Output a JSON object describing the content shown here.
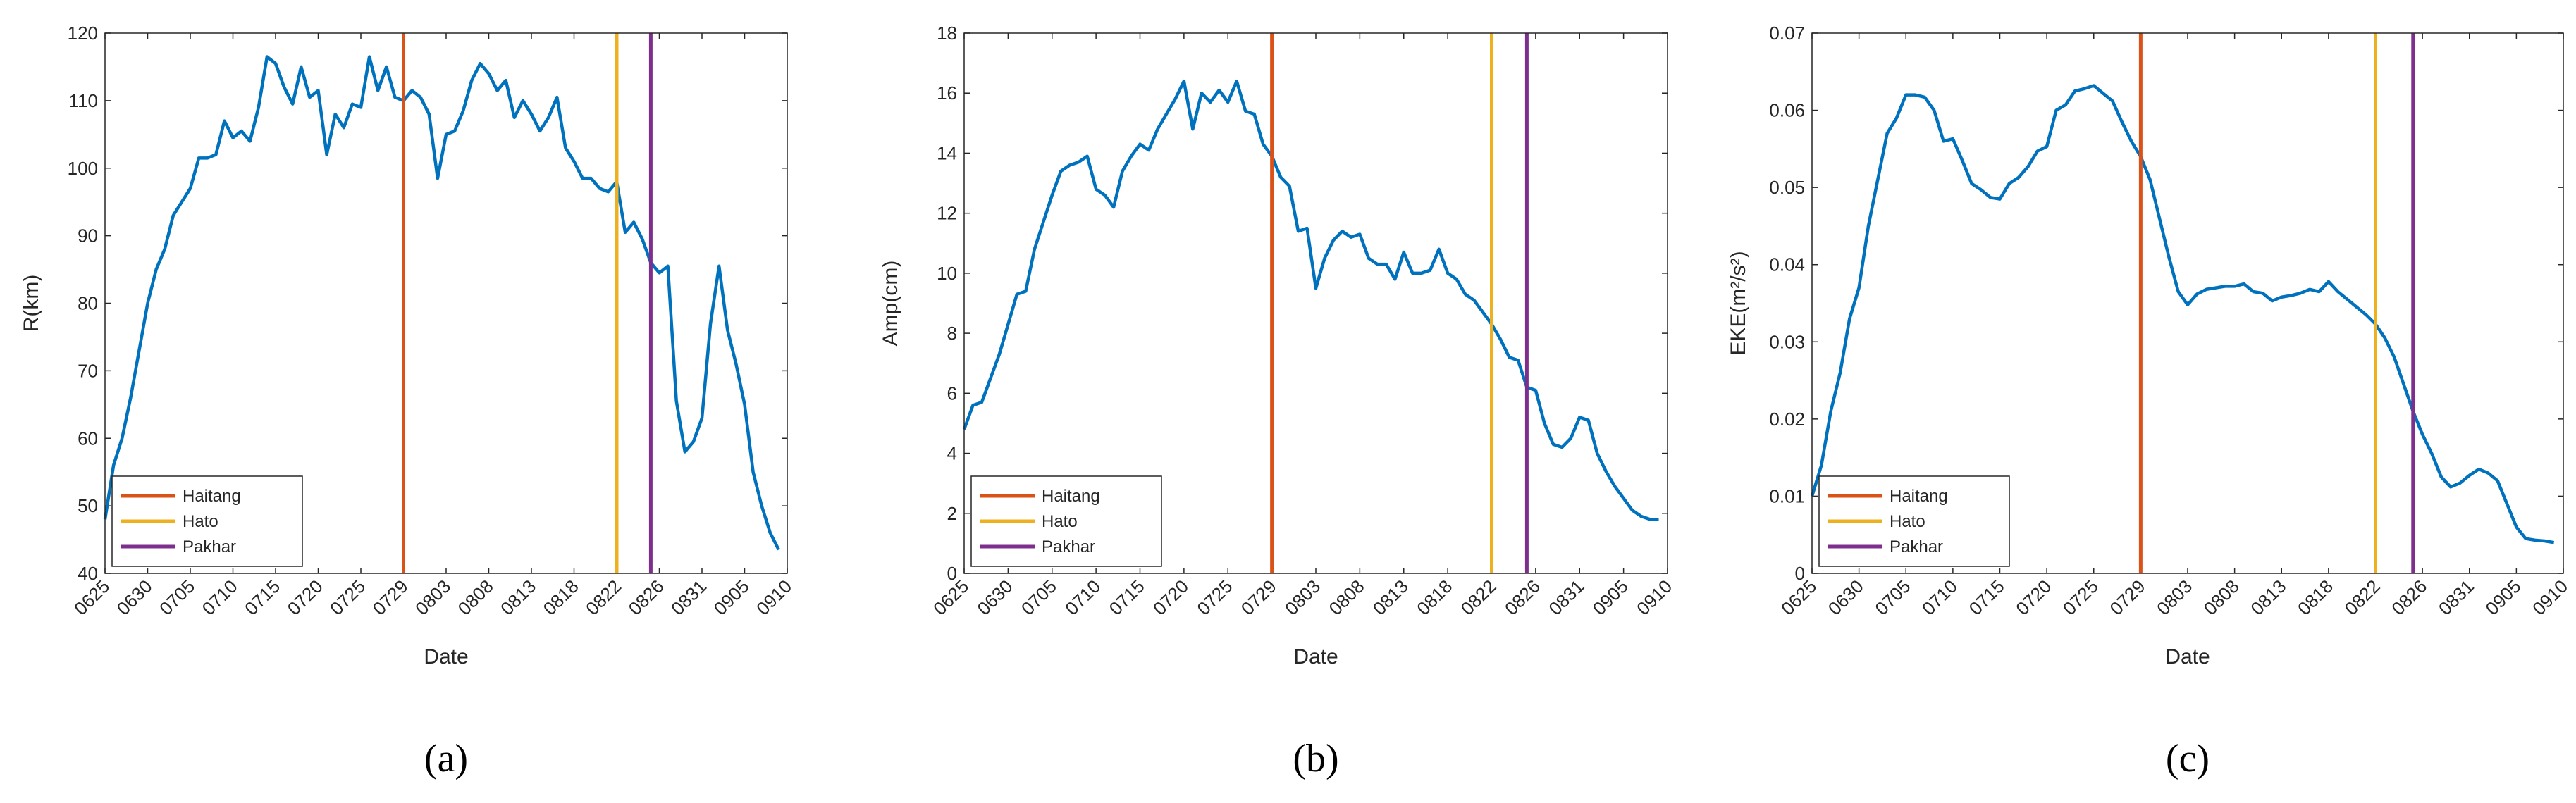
{
  "chart_data": [
    {
      "type": "line",
      "label": "(a)",
      "xlabel": "Date",
      "ylabel": "R(km)",
      "color": "#0072bd",
      "legend": "lower left",
      "xlim": [
        0,
        80
      ],
      "xticks": [
        {
          "value": 0,
          "label": "0625"
        },
        {
          "value": 5,
          "label": "0630"
        },
        {
          "value": 10,
          "label": "0705"
        },
        {
          "value": 15,
          "label": "0710"
        },
        {
          "value": 20,
          "label": "0715"
        },
        {
          "value": 25,
          "label": "0720"
        },
        {
          "value": 30,
          "label": "0725"
        },
        {
          "value": 35,
          "label": "0729"
        },
        {
          "value": 40,
          "label": "0803"
        },
        {
          "value": 45,
          "label": "0808"
        },
        {
          "value": 50,
          "label": "0813"
        },
        {
          "value": 55,
          "label": "0818"
        },
        {
          "value": 60,
          "label": "0822"
        },
        {
          "value": 65,
          "label": "0826"
        },
        {
          "value": 70,
          "label": "0831"
        },
        {
          "value": 75,
          "label": "0905"
        },
        {
          "value": 80,
          "label": "0910"
        }
      ],
      "ylim": [
        40,
        120
      ],
      "yticks": [
        40,
        50,
        60,
        70,
        80,
        90,
        100,
        110,
        120
      ],
      "x": [
        0,
        1,
        2,
        3,
        4,
        5,
        6,
        7,
        8,
        9,
        10,
        11,
        12,
        13,
        14,
        15,
        16,
        17,
        18,
        19,
        20,
        21,
        22,
        23,
        24,
        25,
        26,
        27,
        28,
        29,
        30,
        31,
        32,
        33,
        34,
        35,
        36,
        37,
        38,
        39,
        40,
        41,
        42,
        43,
        44,
        45,
        46,
        47,
        48,
        49,
        50,
        51,
        52,
        53,
        54,
        55,
        56,
        57,
        58,
        59,
        60,
        61,
        62,
        63,
        64,
        65,
        66,
        67,
        68,
        69,
        70,
        71,
        72,
        73,
        74,
        75,
        76,
        77,
        78,
        79
      ],
      "values": [
        48,
        56,
        60,
        66,
        73,
        80,
        85,
        88,
        93,
        95,
        97,
        101.5,
        101.5,
        102,
        107,
        104.5,
        105.5,
        104,
        109,
        116.5,
        115.5,
        112,
        109.5,
        115,
        110.5,
        111.5,
        102,
        108,
        106,
        109.5,
        109,
        116.5,
        111.5,
        115,
        110.5,
        110,
        111.5,
        110.5,
        108,
        98.5,
        105,
        105.5,
        108.5,
        113,
        115.5,
        114,
        111.5,
        113,
        107.5,
        110,
        108,
        105.5,
        107.5,
        110.5,
        103,
        101,
        98.5,
        98.5,
        97,
        96.5,
        98,
        90.5,
        92,
        89.5,
        86,
        84.5,
        85.5,
        65.5,
        58,
        59.5,
        63,
        77,
        85.5,
        76,
        71,
        65,
        55,
        50,
        46,
        43.5
      ],
      "vlines": [
        {
          "name": "Haitang",
          "color": "#d95319",
          "x": 35
        },
        {
          "name": "Hato",
          "color": "#edb120",
          "x": 60
        },
        {
          "name": "Pakhar",
          "color": "#7e2f8e",
          "x": 64
        }
      ]
    },
    {
      "type": "line",
      "label": "(b)",
      "xlabel": "Date",
      "ylabel": "Amp(cm)",
      "color": "#0072bd",
      "legend": "lower left",
      "xlim": [
        0,
        80
      ],
      "xticks": [
        {
          "value": 0,
          "label": "0625"
        },
        {
          "value": 5,
          "label": "0630"
        },
        {
          "value": 10,
          "label": "0705"
        },
        {
          "value": 15,
          "label": "0710"
        },
        {
          "value": 20,
          "label": "0715"
        },
        {
          "value": 25,
          "label": "0720"
        },
        {
          "value": 30,
          "label": "0725"
        },
        {
          "value": 35,
          "label": "0729"
        },
        {
          "value": 40,
          "label": "0803"
        },
        {
          "value": 45,
          "label": "0808"
        },
        {
          "value": 50,
          "label": "0813"
        },
        {
          "value": 55,
          "label": "0818"
        },
        {
          "value": 60,
          "label": "0822"
        },
        {
          "value": 65,
          "label": "0826"
        },
        {
          "value": 70,
          "label": "0831"
        },
        {
          "value": 75,
          "label": "0905"
        },
        {
          "value": 80,
          "label": "0910"
        }
      ],
      "ylim": [
        0,
        18
      ],
      "yticks": [
        0,
        2,
        4,
        6,
        8,
        10,
        12,
        14,
        16,
        18
      ],
      "x": [
        0,
        1,
        2,
        3,
        4,
        5,
        6,
        7,
        8,
        9,
        10,
        11,
        12,
        13,
        14,
        15,
        16,
        17,
        18,
        19,
        20,
        21,
        22,
        23,
        24,
        25,
        26,
        27,
        28,
        29,
        30,
        31,
        32,
        33,
        34,
        35,
        36,
        37,
        38,
        39,
        40,
        41,
        42,
        43,
        44,
        45,
        46,
        47,
        48,
        49,
        50,
        51,
        52,
        53,
        54,
        55,
        56,
        57,
        58,
        59,
        60,
        61,
        62,
        63,
        64,
        65,
        66,
        67,
        68,
        69,
        70,
        71,
        72,
        73,
        74,
        75,
        76,
        77,
        78,
        79
      ],
      "values": [
        4.8,
        5.6,
        5.7,
        6.5,
        7.3,
        8.3,
        9.3,
        9.4,
        10.8,
        11.7,
        12.6,
        13.4,
        13.6,
        13.7,
        13.9,
        12.8,
        12.6,
        12.2,
        13.4,
        13.9,
        14.3,
        14.1,
        14.8,
        15.3,
        15.8,
        16.4,
        14.8,
        16.0,
        15.7,
        16.1,
        15.7,
        16.4,
        15.4,
        15.3,
        14.3,
        13.9,
        13.2,
        12.9,
        11.4,
        11.5,
        9.5,
        10.5,
        11.1,
        11.4,
        11.2,
        11.3,
        10.5,
        10.3,
        10.3,
        9.8,
        10.7,
        10.0,
        10.0,
        10.1,
        10.8,
        10.0,
        9.8,
        9.3,
        9.1,
        8.7,
        8.3,
        7.8,
        7.2,
        7.1,
        6.2,
        6.1,
        5.0,
        4.3,
        4.2,
        4.5,
        5.2,
        5.1,
        4.0,
        3.4,
        2.9,
        2.5,
        2.1,
        1.9,
        1.8,
        1.8
      ],
      "vlines": [
        {
          "name": "Haitang",
          "color": "#d95319",
          "x": 35
        },
        {
          "name": "Hato",
          "color": "#edb120",
          "x": 60
        },
        {
          "name": "Pakhar",
          "color": "#7e2f8e",
          "x": 64
        }
      ]
    },
    {
      "type": "line",
      "label": "(c)",
      "xlabel": "Date",
      "ylabel": "EKE(m²/s²)",
      "color": "#0072bd",
      "legend": "lower left",
      "xlim": [
        0,
        80
      ],
      "xticks": [
        {
          "value": 0,
          "label": "0625"
        },
        {
          "value": 5,
          "label": "0630"
        },
        {
          "value": 10,
          "label": "0705"
        },
        {
          "value": 15,
          "label": "0710"
        },
        {
          "value": 20,
          "label": "0715"
        },
        {
          "value": 25,
          "label": "0720"
        },
        {
          "value": 30,
          "label": "0725"
        },
        {
          "value": 35,
          "label": "0729"
        },
        {
          "value": 40,
          "label": "0803"
        },
        {
          "value": 45,
          "label": "0808"
        },
        {
          "value": 50,
          "label": "0813"
        },
        {
          "value": 55,
          "label": "0818"
        },
        {
          "value": 60,
          "label": "0822"
        },
        {
          "value": 65,
          "label": "0826"
        },
        {
          "value": 70,
          "label": "0831"
        },
        {
          "value": 75,
          "label": "0905"
        },
        {
          "value": 80,
          "label": "0910"
        }
      ],
      "ylim": [
        0,
        0.07
      ],
      "yticks": [
        0,
        0.01,
        0.02,
        0.03,
        0.04,
        0.05,
        0.06,
        0.07
      ],
      "x": [
        0,
        1,
        2,
        3,
        4,
        5,
        6,
        7,
        8,
        9,
        10,
        11,
        12,
        13,
        14,
        15,
        16,
        17,
        18,
        19,
        20,
        21,
        22,
        23,
        24,
        25,
        26,
        27,
        28,
        29,
        30,
        31,
        32,
        33,
        34,
        35,
        36,
        37,
        38,
        39,
        40,
        41,
        42,
        43,
        44,
        45,
        46,
        47,
        48,
        49,
        50,
        51,
        52,
        53,
        54,
        55,
        56,
        57,
        58,
        59,
        60,
        61,
        62,
        63,
        64,
        65,
        66,
        67,
        68,
        69,
        70,
        71,
        72,
        73,
        74,
        75,
        76,
        77,
        78,
        79
      ],
      "values": [
        0.01,
        0.014,
        0.021,
        0.026,
        0.033,
        0.037,
        0.045,
        0.051,
        0.057,
        0.059,
        0.062,
        0.062,
        0.0617,
        0.06,
        0.056,
        0.0563,
        0.0535,
        0.0505,
        0.0497,
        0.0487,
        0.0485,
        0.0505,
        0.0513,
        0.0527,
        0.0547,
        0.0553,
        0.06,
        0.0607,
        0.0625,
        0.0628,
        0.0632,
        0.0622,
        0.0612,
        0.0585,
        0.056,
        0.054,
        0.051,
        0.046,
        0.041,
        0.0365,
        0.0348,
        0.0362,
        0.0368,
        0.037,
        0.0372,
        0.0372,
        0.0375,
        0.0365,
        0.0363,
        0.0353,
        0.0358,
        0.036,
        0.0363,
        0.0368,
        0.0365,
        0.0378,
        0.0365,
        0.0355,
        0.0345,
        0.0335,
        0.0323,
        0.0305,
        0.028,
        0.0245,
        0.021,
        0.018,
        0.0155,
        0.0125,
        0.0112,
        0.0117,
        0.0127,
        0.0135,
        0.013,
        0.012,
        0.009,
        0.006,
        0.0045,
        0.0043,
        0.0042,
        0.004
      ],
      "vlines": [
        {
          "name": "Haitang",
          "color": "#d95319",
          "x": 35
        },
        {
          "name": "Hato",
          "color": "#edb120",
          "x": 60
        },
        {
          "name": "Pakhar",
          "color": "#7e2f8e",
          "x": 64
        }
      ]
    }
  ]
}
